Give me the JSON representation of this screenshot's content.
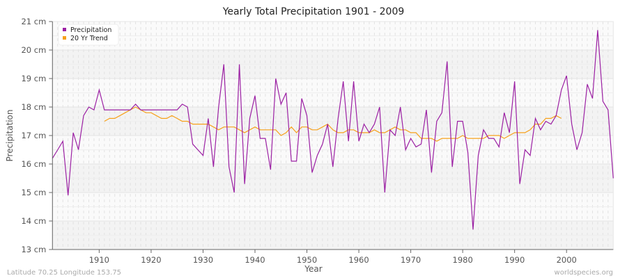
{
  "chart_data": {
    "type": "line",
    "title": "Yearly Total Precipitation 1901 - 2009",
    "xlabel": "Year",
    "ylabel": "Precipitation",
    "xlim": [
      1901,
      2009
    ],
    "ylim": [
      13,
      21
    ],
    "y_unit": "cm",
    "x_ticks": [
      1910,
      1920,
      1930,
      1940,
      1950,
      1960,
      1970,
      1980,
      1990,
      2000
    ],
    "y_ticks": [
      "13 cm",
      "14 cm",
      "15 cm",
      "16 cm",
      "17 cm",
      "18 cm",
      "19 cm",
      "20 cm",
      "21 cm"
    ],
    "grid": true,
    "legend_position": "top-left",
    "series": [
      {
        "name": "Precipitation",
        "color": "#9b1fa3",
        "x_start": 1901,
        "values": [
          16.2,
          16.5,
          16.8,
          14.9,
          17.1,
          16.5,
          17.7,
          18.0,
          17.9,
          18.6,
          17.9,
          17.9,
          17.9,
          17.9,
          17.9,
          17.9,
          18.1,
          17.9,
          17.9,
          17.9,
          17.9,
          17.9,
          17.9,
          17.9,
          17.9,
          18.1,
          18.0,
          16.7,
          16.5,
          16.3,
          17.6,
          15.9,
          18.0,
          19.5,
          15.9,
          15.0,
          19.5,
          15.3,
          17.6,
          18.4,
          16.9,
          16.9,
          15.8,
          19.0,
          18.1,
          18.5,
          16.1,
          16.1,
          18.3,
          17.7,
          15.7,
          16.3,
          16.7,
          17.4,
          15.9,
          17.6,
          18.9,
          16.8,
          18.9,
          16.8,
          17.4,
          17.1,
          17.4,
          18.0,
          15.0,
          17.2,
          17.0,
          18.0,
          16.5,
          16.9,
          16.6,
          16.7,
          17.9,
          15.7,
          17.5,
          17.8,
          19.6,
          15.9,
          17.5,
          17.5,
          16.4,
          13.7,
          16.3,
          17.2,
          16.9,
          16.9,
          16.6,
          17.8,
          17.1,
          18.9,
          15.3,
          16.5,
          16.3,
          17.6,
          17.2,
          17.5,
          17.4,
          17.7,
          18.6,
          19.1,
          17.4,
          16.5,
          17.1,
          18.8,
          18.3,
          20.7,
          18.2,
          17.9,
          15.5
        ]
      },
      {
        "name": "20 Yr Trend",
        "color": "#f7a11a",
        "x_start": 1911,
        "values": [
          17.5,
          17.6,
          17.6,
          17.7,
          17.8,
          17.9,
          18.0,
          17.9,
          17.8,
          17.8,
          17.7,
          17.6,
          17.6,
          17.7,
          17.6,
          17.5,
          17.5,
          17.4,
          17.4,
          17.4,
          17.4,
          17.3,
          17.2,
          17.3,
          17.3,
          17.3,
          17.2,
          17.1,
          17.2,
          17.3,
          17.2,
          17.2,
          17.2,
          17.2,
          17.0,
          17.1,
          17.3,
          17.1,
          17.3,
          17.3,
          17.2,
          17.2,
          17.3,
          17.4,
          17.2,
          17.1,
          17.1,
          17.2,
          17.2,
          17.1,
          17.1,
          17.1,
          17.2,
          17.1,
          17.1,
          17.2,
          17.3,
          17.2,
          17.2,
          17.1,
          17.1,
          16.9,
          16.9,
          16.9,
          16.8,
          16.9,
          16.9,
          16.9,
          16.9,
          17.0,
          16.9,
          16.9,
          16.9,
          16.9,
          17.0,
          17.0,
          17.0,
          16.9,
          17.0,
          17.1,
          17.1,
          17.1,
          17.2,
          17.4,
          17.4,
          17.6,
          17.6,
          17.7,
          17.6
        ]
      }
    ]
  },
  "legend": {
    "items": [
      {
        "label": "Precipitation",
        "color": "#9b1fa3"
      },
      {
        "label": "20 Yr Trend",
        "color": "#f7a11a"
      }
    ]
  },
  "footer": {
    "location": "Latitude 70.25 Longitude 153.75",
    "source": "worldspecies.org"
  }
}
